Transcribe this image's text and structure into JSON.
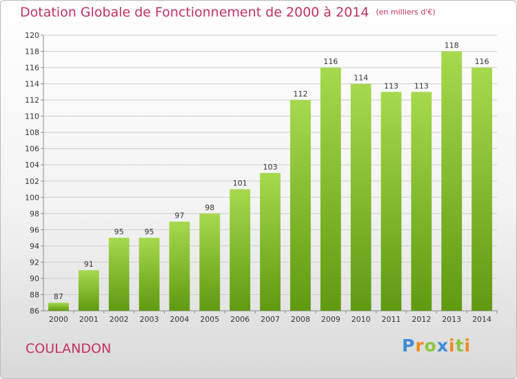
{
  "chart_data": {
    "type": "bar",
    "title": "Dotation Globale de Fonctionnement de 2000 à 2014",
    "subtitle": "(en milliers d'€)",
    "categories": [
      "2000",
      "2001",
      "2002",
      "2003",
      "2004",
      "2005",
      "2006",
      "2007",
      "2008",
      "2009",
      "2010",
      "2011",
      "2012",
      "2013",
      "2014"
    ],
    "values": [
      87,
      91,
      95,
      95,
      97,
      98,
      101,
      103,
      112,
      116,
      114,
      113,
      113,
      118,
      116
    ],
    "xlabel": "",
    "ylabel": "",
    "ylim": [
      86,
      120
    ],
    "yticks": [
      86,
      88,
      90,
      92,
      94,
      96,
      98,
      100,
      102,
      104,
      106,
      108,
      110,
      112,
      114,
      116,
      118,
      120
    ],
    "grid": true,
    "colors": {
      "bar_light": "#a6d94e",
      "bar_dark": "#5f9a10",
      "title": "#c23060",
      "axis": "#888888",
      "grid": "#cccccc"
    }
  },
  "footer": {
    "commune": "COULANDON",
    "logo_letters": [
      "P",
      "r",
      "o",
      "x",
      "i",
      "t",
      "i"
    ],
    "logo_colors": [
      "#3e8bd6",
      "#f08a1c",
      "#8cc63f",
      "#3e8bd6",
      "#f08a1c",
      "#8cc63f",
      "#f08a1c"
    ]
  }
}
